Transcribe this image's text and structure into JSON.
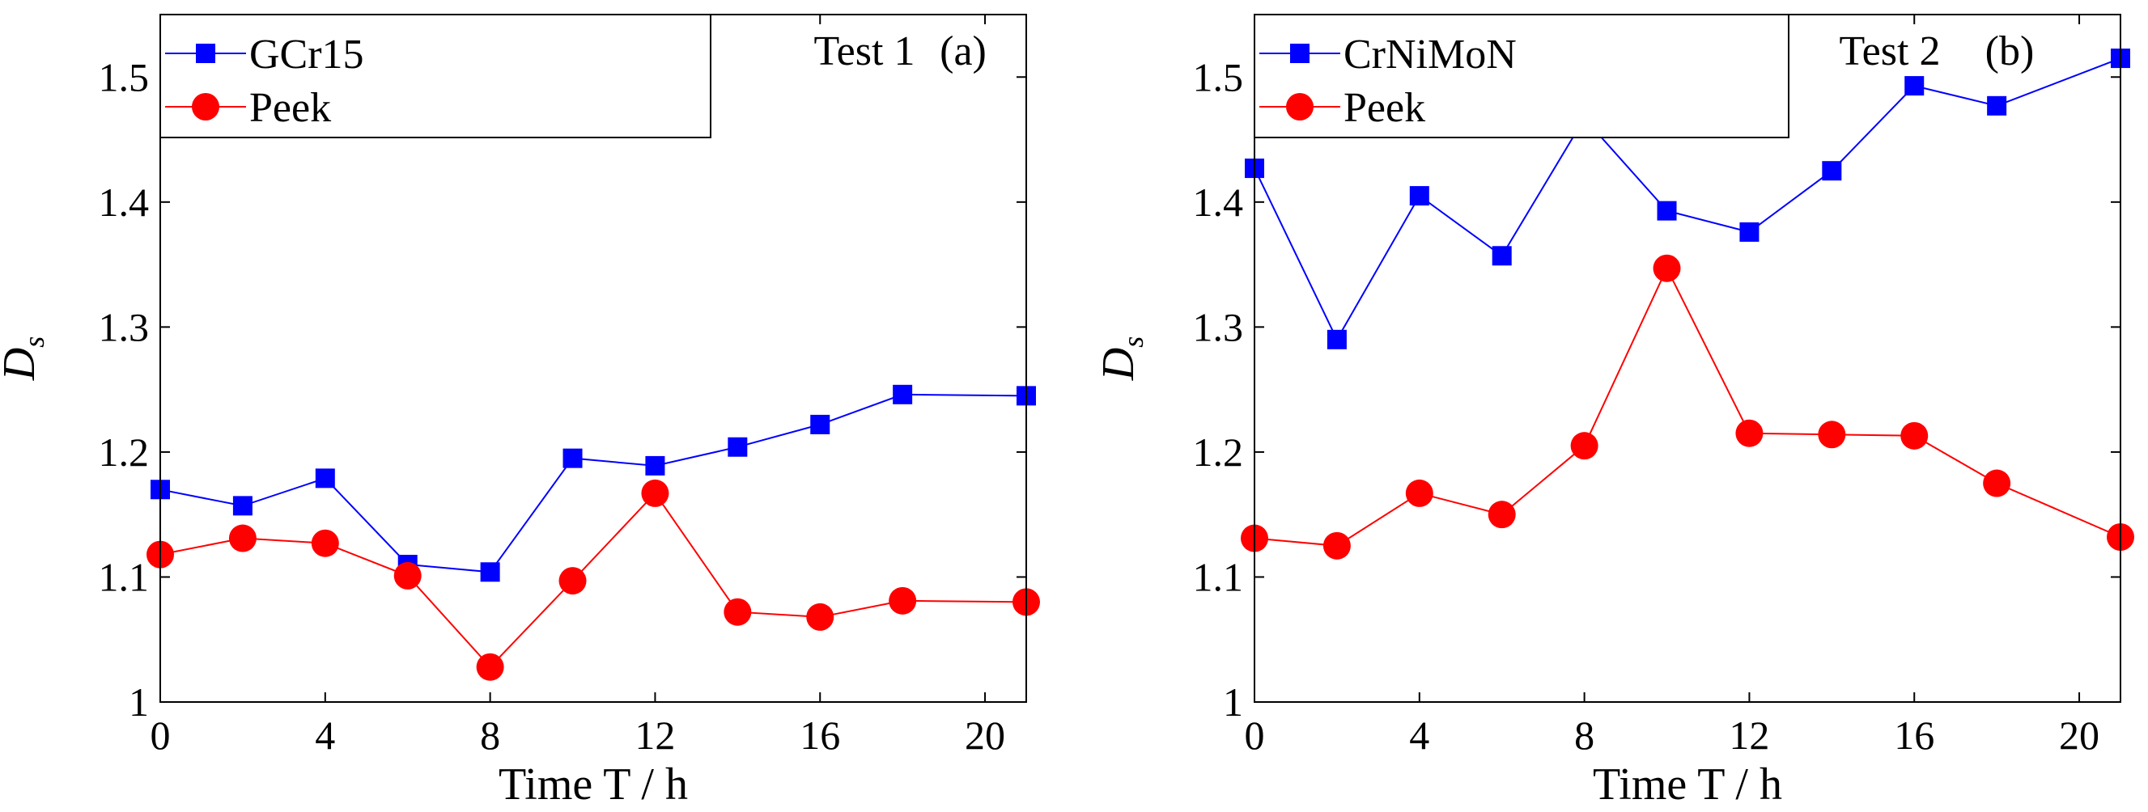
{
  "chart_data": [
    {
      "type": "line",
      "panel": "a",
      "title": "",
      "annotation_test": "Test 1",
      "annotation_panel": "(a)",
      "xlabel": "Time T / h",
      "ylabel_main": "D",
      "ylabel_sub": "s",
      "xlim": [
        0,
        21
      ],
      "ylim": [
        1.0,
        1.55
      ],
      "xticks": [
        0,
        4,
        8,
        12,
        16,
        20
      ],
      "xtick_labels": [
        "0",
        "4",
        "8",
        "12",
        "16",
        "20"
      ],
      "yticks": [
        1.0,
        1.1,
        1.2,
        1.3,
        1.4,
        1.5
      ],
      "ytick_labels": [
        "1",
        "1.1",
        "1.2",
        "1.3",
        "1.4",
        "1.5"
      ],
      "grid": false,
      "legend_position": "top-left",
      "series": [
        {
          "name": "GCr15",
          "color": "#0000ff",
          "marker": "square",
          "x": [
            0,
            2,
            4,
            6,
            8,
            10,
            12,
            14,
            16,
            18,
            21
          ],
          "y": [
            1.17,
            1.157,
            1.179,
            1.11,
            1.104,
            1.195,
            1.189,
            1.204,
            1.222,
            1.246,
            1.245
          ]
        },
        {
          "name": "Peek",
          "color": "#ff0000",
          "marker": "circle",
          "x": [
            0,
            2,
            4,
            6,
            8,
            10,
            12,
            14,
            16,
            18,
            21
          ],
          "y": [
            1.118,
            1.131,
            1.127,
            1.101,
            1.028,
            1.097,
            1.167,
            1.072,
            1.068,
            1.081,
            1.08
          ]
        }
      ]
    },
    {
      "type": "line",
      "panel": "b",
      "title": "",
      "annotation_test": "Test 2",
      "annotation_panel": "(b)",
      "xlabel": "Time T / h",
      "ylabel_main": "D",
      "ylabel_sub": "s",
      "xlim": [
        0,
        21
      ],
      "ylim": [
        1.0,
        1.55
      ],
      "xticks": [
        0,
        4,
        8,
        12,
        16,
        20
      ],
      "xtick_labels": [
        "0",
        "4",
        "8",
        "12",
        "16",
        "20"
      ],
      "yticks": [
        1.0,
        1.1,
        1.2,
        1.3,
        1.4,
        1.5
      ],
      "ytick_labels": [
        "1",
        "1.1",
        "1.2",
        "1.3",
        "1.4",
        "1.5"
      ],
      "grid": false,
      "legend_position": "top-left",
      "series": [
        {
          "name": "CrNiMoN",
          "color": "#0000ff",
          "marker": "square",
          "x": [
            0,
            2,
            4,
            6,
            8,
            10,
            12,
            14,
            16,
            18,
            21
          ],
          "y": [
            1.427,
            1.29,
            1.405,
            1.357,
            1.467,
            1.393,
            1.376,
            1.425,
            1.493,
            1.477,
            1.515
          ]
        },
        {
          "name": "Peek",
          "color": "#ff0000",
          "marker": "circle",
          "x": [
            0,
            2,
            4,
            6,
            8,
            10,
            12,
            14,
            16,
            18,
            21
          ],
          "y": [
            1.131,
            1.125,
            1.167,
            1.15,
            1.205,
            1.347,
            1.215,
            1.214,
            1.213,
            1.175,
            1.132
          ]
        }
      ]
    }
  ]
}
